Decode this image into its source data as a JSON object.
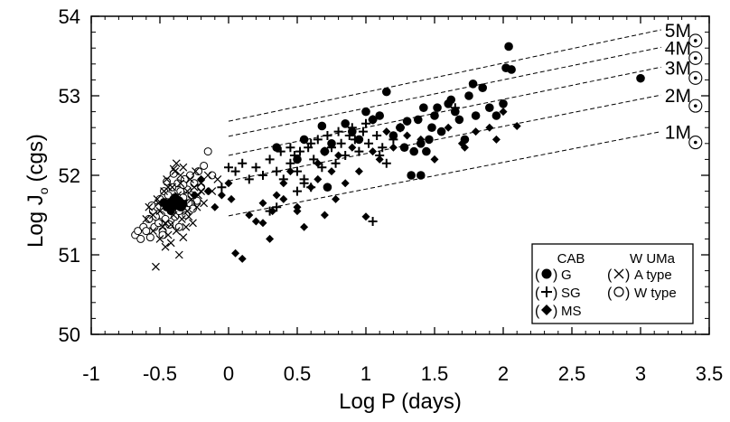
{
  "chart_data": {
    "type": "scatter",
    "xlabel": "Log P (days)",
    "ylabel_main": "Log J",
    "ylabel_sub": "o",
    "ylabel_unit": "(cgs)",
    "xlim": [
      -1,
      3.5
    ],
    "ylim": [
      50,
      54
    ],
    "xticks": [
      -1,
      -0.5,
      0,
      0.5,
      1,
      1.5,
      2,
      2.5,
      3,
      3.5
    ],
    "xtick_labels": [
      "-1",
      "-0.5",
      "0",
      "0.5",
      "1",
      "1.5",
      "2",
      "2.5",
      "3",
      "3.5"
    ],
    "yticks": [
      50,
      51,
      52,
      53,
      54
    ],
    "ytick_labels": [
      "50",
      "51",
      "52",
      "53",
      "54"
    ],
    "mass_lines": [
      {
        "label": "5M",
        "x": [
          0,
          3.15
        ],
        "y": [
          52.68,
          53.83
        ]
      },
      {
        "label": "4M",
        "x": [
          0,
          3.15
        ],
        "y": [
          52.49,
          53.61
        ]
      },
      {
        "label": "3M",
        "x": [
          0,
          3.15
        ],
        "y": [
          52.25,
          53.36
        ]
      },
      {
        "label": "2M",
        "x": [
          0,
          3.15
        ],
        "y": [
          51.93,
          53.01
        ]
      },
      {
        "label": "1M",
        "x": [
          0,
          3.15
        ],
        "y": [
          51.49,
          52.55
        ]
      }
    ],
    "legend": {
      "cab_title": "CAB",
      "wuma_title": "W UMa",
      "g_label": "G",
      "sg_label": "SG",
      "ms_label": "MS",
      "a_label": "A type",
      "w_label": "W type"
    },
    "series": [
      {
        "name": "G",
        "marker": "filled-circle",
        "points": [
          [
            -0.45,
            51.6
          ],
          [
            -0.43,
            51.65
          ],
          [
            -0.4,
            51.7
          ],
          [
            -0.38,
            51.62
          ],
          [
            -0.36,
            51.68
          ],
          [
            -0.42,
            51.56
          ],
          [
            -0.35,
            51.6
          ],
          [
            -0.47,
            51.66
          ],
          [
            -0.39,
            51.72
          ],
          [
            -0.33,
            51.64
          ],
          [
            0.35,
            52.35
          ],
          [
            0.5,
            52.2
          ],
          [
            0.55,
            52.45
          ],
          [
            0.68,
            52.62
          ],
          [
            0.7,
            52.3
          ],
          [
            0.72,
            51.85
          ],
          [
            0.75,
            52.4
          ],
          [
            0.85,
            52.65
          ],
          [
            0.9,
            52.55
          ],
          [
            0.95,
            52.45
          ],
          [
            1.0,
            52.8
          ],
          [
            1.05,
            52.7
          ],
          [
            1.1,
            52.75
          ],
          [
            1.15,
            53.05
          ],
          [
            1.2,
            52.5
          ],
          [
            1.25,
            52.6
          ],
          [
            1.28,
            52.35
          ],
          [
            1.3,
            52.68
          ],
          [
            1.33,
            52.0
          ],
          [
            1.35,
            52.3
          ],
          [
            1.38,
            52.7
          ],
          [
            1.4,
            52.4
          ],
          [
            1.42,
            52.85
          ],
          [
            1.44,
            52.3
          ],
          [
            1.46,
            52.45
          ],
          [
            1.48,
            52.6
          ],
          [
            1.5,
            52.75
          ],
          [
            1.52,
            52.85
          ],
          [
            1.55,
            52.55
          ],
          [
            1.6,
            52.9
          ],
          [
            1.62,
            52.95
          ],
          [
            1.65,
            52.8
          ],
          [
            1.68,
            52.7
          ],
          [
            1.72,
            52.45
          ],
          [
            1.75,
            53.0
          ],
          [
            1.78,
            53.15
          ],
          [
            1.8,
            52.75
          ],
          [
            1.85,
            53.1
          ],
          [
            1.9,
            52.85
          ],
          [
            1.95,
            52.75
          ],
          [
            2.0,
            52.9
          ],
          [
            2.02,
            53.35
          ],
          [
            2.04,
            53.62
          ],
          [
            2.06,
            53.33
          ],
          [
            3.0,
            53.22
          ],
          [
            1.4,
            52.0
          ]
        ]
      },
      {
        "name": "SG",
        "marker": "plus",
        "points": [
          [
            -0.05,
            51.85
          ],
          [
            0.0,
            52.1
          ],
          [
            0.05,
            52.05
          ],
          [
            0.15,
            51.95
          ],
          [
            0.2,
            52.1
          ],
          [
            0.25,
            52.0
          ],
          [
            0.3,
            52.2
          ],
          [
            0.35,
            52.05
          ],
          [
            0.38,
            52.3
          ],
          [
            0.4,
            51.95
          ],
          [
            0.45,
            52.15
          ],
          [
            0.48,
            52.25
          ],
          [
            0.5,
            52.05
          ],
          [
            0.52,
            52.3
          ],
          [
            0.55,
            51.9
          ],
          [
            0.58,
            52.35
          ],
          [
            0.6,
            52.4
          ],
          [
            0.62,
            52.2
          ],
          [
            0.65,
            52.45
          ],
          [
            0.68,
            52.1
          ],
          [
            0.7,
            52.3
          ],
          [
            0.72,
            52.5
          ],
          [
            0.75,
            52.35
          ],
          [
            0.78,
            52.15
          ],
          [
            0.8,
            52.55
          ],
          [
            0.82,
            52.4
          ],
          [
            0.85,
            52.25
          ],
          [
            0.88,
            52.5
          ],
          [
            0.9,
            52.6
          ],
          [
            0.92,
            52.45
          ],
          [
            0.95,
            52.3
          ],
          [
            0.98,
            52.55
          ],
          [
            1.0,
            52.65
          ],
          [
            1.02,
            52.4
          ],
          [
            1.05,
            52.7
          ],
          [
            1.08,
            52.5
          ],
          [
            1.1,
            52.25
          ],
          [
            1.12,
            52.35
          ],
          [
            1.15,
            52.15
          ],
          [
            1.2,
            52.45
          ],
          [
            1.25,
            52.6
          ],
          [
            0.3,
            51.55
          ],
          [
            0.35,
            51.6
          ],
          [
            0.5,
            51.8
          ],
          [
            0.55,
            51.95
          ],
          [
            1.05,
            51.42
          ],
          [
            1.65,
            52.85
          ],
          [
            0.1,
            52.15
          ],
          [
            0.45,
            52.35
          ],
          [
            0.6,
            51.85
          ]
        ]
      },
      {
        "name": "MS",
        "marker": "diamond",
        "points": [
          [
            -0.2,
            51.95
          ],
          [
            -0.15,
            51.8
          ],
          [
            -0.1,
            51.6
          ],
          [
            -0.05,
            51.75
          ],
          [
            0.0,
            51.9
          ],
          [
            0.02,
            51.7
          ],
          [
            0.05,
            51.02
          ],
          [
            0.1,
            50.95
          ],
          [
            0.15,
            51.5
          ],
          [
            0.2,
            51.42
          ],
          [
            0.25,
            51.65
          ],
          [
            0.3,
            51.2
          ],
          [
            0.32,
            51.55
          ],
          [
            0.35,
            51.75
          ],
          [
            0.4,
            51.9
          ],
          [
            0.45,
            52.05
          ],
          [
            0.5,
            51.6
          ],
          [
            0.55,
            51.35
          ],
          [
            0.6,
            51.85
          ],
          [
            0.65,
            52.15
          ],
          [
            0.7,
            51.5
          ],
          [
            0.75,
            52.05
          ],
          [
            0.78,
            51.7
          ],
          [
            0.8,
            52.25
          ],
          [
            0.85,
            51.9
          ],
          [
            0.9,
            52.35
          ],
          [
            0.95,
            52.05
          ],
          [
            1.0,
            51.48
          ],
          [
            1.05,
            52.3
          ],
          [
            1.1,
            52.2
          ],
          [
            1.15,
            52.55
          ],
          [
            1.2,
            52.35
          ],
          [
            1.3,
            52.5
          ],
          [
            1.4,
            52.45
          ],
          [
            1.5,
            52.2
          ],
          [
            1.6,
            52.6
          ],
          [
            1.7,
            52.4
          ],
          [
            1.8,
            52.55
          ],
          [
            1.9,
            52.6
          ],
          [
            2.0,
            52.8
          ],
          [
            2.1,
            52.62
          ],
          [
            0.25,
            51.4
          ],
          [
            0.5,
            51.55
          ],
          [
            -0.25,
            51.75
          ],
          [
            0.65,
            51.95
          ],
          [
            0.4,
            51.7
          ],
          [
            1.95,
            52.45
          ],
          [
            1.72,
            52.35
          ]
        ]
      },
      {
        "name": "A type",
        "marker": "x",
        "points": [
          [
            -0.6,
            51.45
          ],
          [
            -0.58,
            51.6
          ],
          [
            -0.55,
            51.3
          ],
          [
            -0.55,
            51.5
          ],
          [
            -0.53,
            50.85
          ],
          [
            -0.52,
            51.7
          ],
          [
            -0.5,
            51.2
          ],
          [
            -0.5,
            51.55
          ],
          [
            -0.48,
            51.35
          ],
          [
            -0.47,
            51.8
          ],
          [
            -0.46,
            51.4
          ],
          [
            -0.45,
            51.95
          ],
          [
            -0.44,
            51.25
          ],
          [
            -0.43,
            51.6
          ],
          [
            -0.42,
            51.15
          ],
          [
            -0.41,
            51.85
          ],
          [
            -0.4,
            51.5
          ],
          [
            -0.39,
            52.05
          ],
          [
            -0.38,
            51.3
          ],
          [
            -0.37,
            51.75
          ],
          [
            -0.36,
            51.0
          ],
          [
            -0.35,
            51.9
          ],
          [
            -0.34,
            51.45
          ],
          [
            -0.33,
            52.1
          ],
          [
            -0.32,
            51.65
          ],
          [
            -0.31,
            51.35
          ],
          [
            -0.3,
            51.8
          ],
          [
            -0.3,
            51.55
          ],
          [
            -0.28,
            51.95
          ],
          [
            -0.27,
            51.7
          ],
          [
            -0.26,
            51.4
          ],
          [
            -0.25,
            51.85
          ],
          [
            -0.24,
            52.05
          ],
          [
            -0.23,
            51.6
          ],
          [
            -0.22,
            51.75
          ],
          [
            -0.2,
            51.9
          ],
          [
            -0.18,
            51.65
          ],
          [
            -0.15,
            52.0
          ],
          [
            -0.12,
            51.8
          ],
          [
            -0.08,
            51.95
          ],
          [
            -0.38,
            52.15
          ],
          [
            -0.46,
            51.1
          ],
          [
            -0.42,
            51.38
          ],
          [
            -0.35,
            52.0
          ],
          [
            -0.29,
            51.48
          ],
          [
            -0.2,
            51.8
          ],
          [
            -0.51,
            51.65
          ],
          [
            -0.44,
            51.85
          ],
          [
            -0.33,
            51.22
          ],
          [
            -0.4,
            52.08
          ]
        ]
      },
      {
        "name": "W type",
        "marker": "open-circle",
        "points": [
          [
            -0.68,
            51.25
          ],
          [
            -0.66,
            51.3
          ],
          [
            -0.64,
            51.2
          ],
          [
            -0.62,
            51.35
          ],
          [
            -0.6,
            51.3
          ],
          [
            -0.58,
            51.45
          ],
          [
            -0.57,
            51.22
          ],
          [
            -0.55,
            51.55
          ],
          [
            -0.54,
            51.35
          ],
          [
            -0.52,
            51.6
          ],
          [
            -0.51,
            51.4
          ],
          [
            -0.5,
            51.7
          ],
          [
            -0.49,
            51.5
          ],
          [
            -0.48,
            51.3
          ],
          [
            -0.47,
            51.8
          ],
          [
            -0.46,
            51.45
          ],
          [
            -0.45,
            51.62
          ],
          [
            -0.44,
            51.75
          ],
          [
            -0.43,
            51.38
          ],
          [
            -0.42,
            51.55
          ],
          [
            -0.41,
            51.85
          ],
          [
            -0.4,
            51.65
          ],
          [
            -0.39,
            51.48
          ],
          [
            -0.38,
            51.7
          ],
          [
            -0.37,
            51.9
          ],
          [
            -0.36,
            51.55
          ],
          [
            -0.35,
            51.8
          ],
          [
            -0.34,
            51.6
          ],
          [
            -0.33,
            51.72
          ],
          [
            -0.32,
            51.95
          ],
          [
            -0.31,
            51.5
          ],
          [
            -0.3,
            51.82
          ],
          [
            -0.29,
            51.65
          ],
          [
            -0.28,
            52.0
          ],
          [
            -0.27,
            51.75
          ],
          [
            -0.25,
            51.9
          ],
          [
            -0.23,
            51.68
          ],
          [
            -0.22,
            52.05
          ],
          [
            -0.2,
            51.85
          ],
          [
            -0.18,
            52.12
          ],
          [
            -0.15,
            52.3
          ],
          [
            -0.12,
            52.0
          ],
          [
            -0.48,
            51.25
          ],
          [
            -0.53,
            51.48
          ],
          [
            -0.45,
            51.92
          ],
          [
            -0.36,
            51.35
          ],
          [
            -0.4,
            52.02
          ],
          [
            -0.26,
            51.58
          ],
          [
            -0.33,
            51.88
          ],
          [
            -0.56,
            51.62
          ]
        ]
      }
    ]
  }
}
